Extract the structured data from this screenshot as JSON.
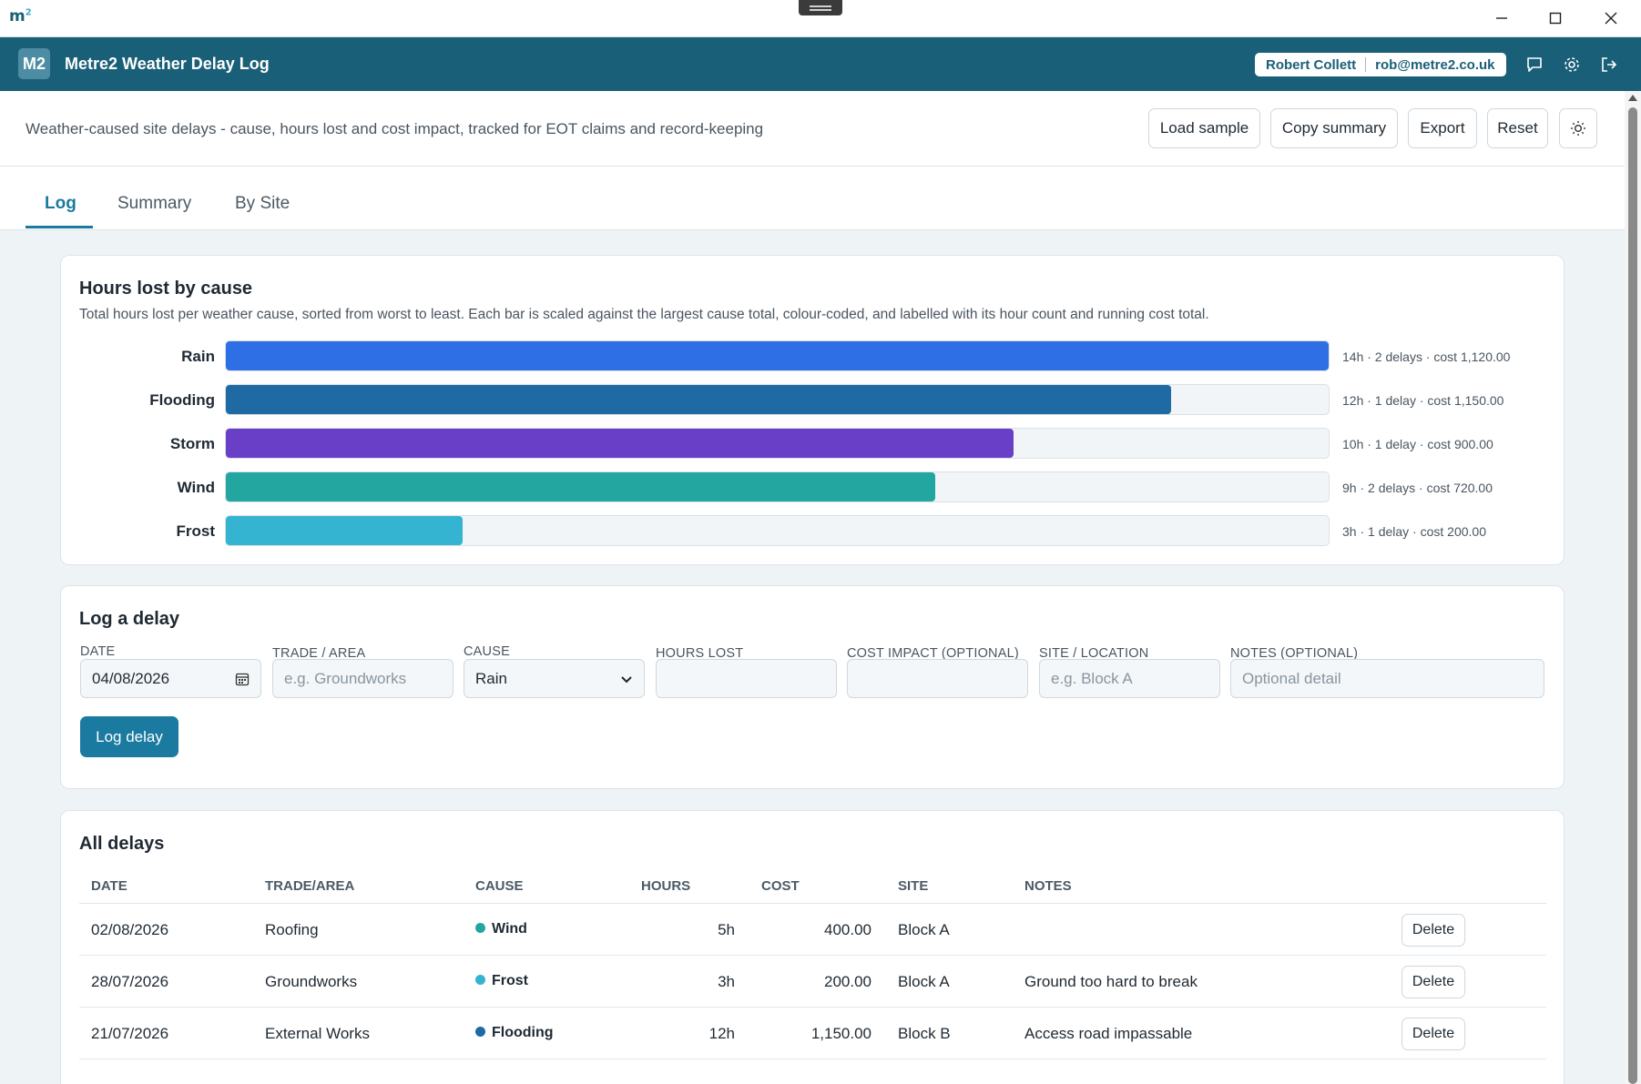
{
  "os": {
    "logo": "m",
    "logo_sup": "2",
    "icons": {
      "minimize": "minimize-icon",
      "maximize": "maximize-icon",
      "close": "close-icon"
    }
  },
  "header": {
    "badge": "M2",
    "title": "Metre2 Weather Delay Log",
    "user_name": "Robert Collett",
    "user_email": "rob@metre2.co.uk",
    "icons": [
      "chat-icon",
      "gear-icon",
      "logout-icon"
    ]
  },
  "toolbar": {
    "description": "Weather-caused site delays - cause, hours lost and cost impact, tracked for EOT claims and record-keeping",
    "buttons": [
      "Load sample",
      "Copy summary",
      "Export",
      "Reset"
    ],
    "theme_icon": "sun-icon"
  },
  "tabs": [
    {
      "label": "Log",
      "active": true
    },
    {
      "label": "Summary",
      "active": false
    },
    {
      "label": "By Site",
      "active": false
    }
  ],
  "chart": {
    "title": "Hours lost by cause",
    "subtitle": "Total hours lost per weather cause, sorted from worst to least. Each bar is scaled against the largest cause total, colour-coded, and labelled with its hour count and running cost total."
  },
  "chart_data": {
    "type": "bar",
    "orientation": "horizontal",
    "title": "Hours lost by cause",
    "categories": [
      "Rain",
      "Flooding",
      "Storm",
      "Wind",
      "Frost"
    ],
    "values": [
      14,
      12,
      10,
      9,
      3
    ],
    "delays": [
      2,
      1,
      1,
      2,
      1
    ],
    "costs": [
      "1,120.00",
      "1,150.00",
      "900.00",
      "720.00",
      "200.00"
    ],
    "labels": [
      "14h · 2 delays · cost 1,120.00",
      "12h · 1 delay · cost 1,150.00",
      "10h · 1 delay · cost 900.00",
      "9h · 2 delays · cost 720.00",
      "3h · 1 delay · cost 200.00"
    ],
    "colors": [
      "#2f6fe6",
      "#1f6aa3",
      "#6a3fc7",
      "#23a6a0",
      "#35b4d2"
    ],
    "xlim": [
      0,
      14
    ]
  },
  "form": {
    "title": "Log a delay",
    "date": {
      "label": "Date",
      "value": "04/08/2026"
    },
    "trade": {
      "label": "Trade / Area",
      "placeholder": "e.g. Groundworks"
    },
    "cause": {
      "label": "Cause",
      "value": "Rain"
    },
    "hours": {
      "label": "Hours lost",
      "value": ""
    },
    "cost": {
      "label": "Cost impact (optional)",
      "value": ""
    },
    "site": {
      "label": "Site / Location",
      "placeholder": "e.g. Block A"
    },
    "notes": {
      "label": "Notes (optional)",
      "placeholder": "Optional detail"
    },
    "submit_label": "Log delay"
  },
  "table": {
    "title": "All delays",
    "columns": [
      "Date",
      "Trade/Area",
      "Cause",
      "Hours",
      "Cost",
      "Site",
      "Notes"
    ],
    "delete_label": "Delete",
    "rows": [
      {
        "date": "02/08/2026",
        "trade": "Roofing",
        "cause": "Wind",
        "color": "#23a6a0",
        "hours": "5h",
        "cost": "400.00",
        "site": "Block A",
        "notes": ""
      },
      {
        "date": "28/07/2026",
        "trade": "Groundworks",
        "cause": "Frost",
        "color": "#35b4d2",
        "hours": "3h",
        "cost": "200.00",
        "site": "Block A",
        "notes": "Ground too hard to break"
      },
      {
        "date": "21/07/2026",
        "trade": "External Works",
        "cause": "Flooding",
        "color": "#1f6aa3",
        "hours": "12h",
        "cost": "1,150.00",
        "site": "Block B",
        "notes": "Access road impassable"
      }
    ]
  }
}
